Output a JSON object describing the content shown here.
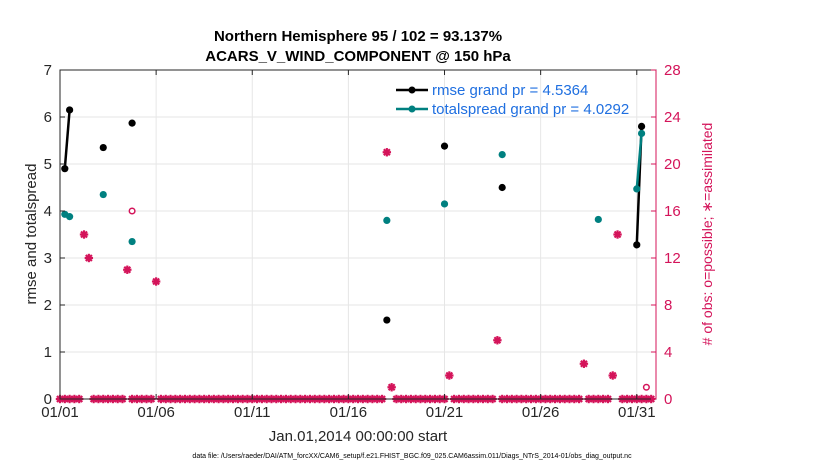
{
  "chart_data": {
    "type": "line",
    "title_line1": "Northern Hemisphere 95 / 102 = 93.137%",
    "title_line2": "ACARS_V_WIND_COMPONENT @ 150 hPa",
    "xlabel": "Jan.01,2014 00:00:00 start",
    "ylabel_left": "rmse and totalspread",
    "ylabel_right": "# of obs: o=possible; ∗=assimilated",
    "footnote": "data file: /Users/raeder/DAI/ATM_forcXX/CAM6_setup/f.e21.FHIST_BGC.f09_025.CAM6assim.011/Diags_NTrS_2014-01/obs_diag_output.nc",
    "xlim": [
      1,
      32
    ],
    "ylim_left": [
      0,
      7
    ],
    "ylim_right": [
      0,
      28
    ],
    "x_ticks": [
      1,
      6,
      11,
      16,
      21,
      26,
      31
    ],
    "x_tick_labels": [
      "01/01",
      "01/06",
      "01/11",
      "01/16",
      "01/21",
      "01/26",
      "01/31"
    ],
    "y_ticks_left": [
      0,
      1,
      2,
      3,
      4,
      5,
      6,
      7
    ],
    "y_ticks_left_labels": [
      "0",
      "1",
      "2",
      "3",
      "4",
      "5",
      "6",
      "7"
    ],
    "y_ticks_right": [
      0,
      4,
      8,
      12,
      16,
      20,
      24,
      28
    ],
    "y_ticks_right_labels": [
      "0",
      "4",
      "8",
      "12",
      "16",
      "20",
      "24",
      "28"
    ],
    "grid": true,
    "legend_position": "top-right",
    "series": [
      {
        "name": "rmse grand pr = 4.5364",
        "color": "#000000",
        "axis": "left",
        "points": [
          [
            1.25,
            4.9
          ],
          [
            1.5,
            6.15
          ],
          [
            3.25,
            5.35
          ],
          [
            4.75,
            5.87
          ],
          [
            18.0,
            1.68
          ],
          [
            21.0,
            5.38
          ],
          [
            24.0,
            4.5
          ],
          [
            31.0,
            3.28
          ],
          [
            31.25,
            5.8
          ]
        ]
      },
      {
        "name": "totalspread grand pr = 4.0292",
        "color": "#008080",
        "axis": "left",
        "points": [
          [
            1.25,
            3.93
          ],
          [
            1.5,
            3.88
          ],
          [
            3.25,
            4.35
          ],
          [
            4.75,
            3.35
          ],
          [
            18.0,
            3.8
          ],
          [
            21.0,
            4.15
          ],
          [
            24.0,
            5.2
          ],
          [
            29.0,
            3.82
          ],
          [
            31.0,
            4.47
          ],
          [
            31.25,
            5.65
          ]
        ]
      },
      {
        "name": "assimilated",
        "color": "#d4145a",
        "axis": "right",
        "values": [
          0,
          0,
          0,
          0,
          0,
          14,
          12,
          0,
          0,
          0,
          0,
          0,
          0,
          0,
          11,
          0,
          0,
          0,
          0,
          0,
          10,
          0,
          0,
          0,
          0,
          0,
          0,
          0,
          0,
          0,
          0,
          0,
          0,
          0,
          0,
          0,
          0,
          0,
          0,
          0,
          0,
          0,
          0,
          0,
          0,
          0,
          0,
          0,
          0,
          0,
          0,
          0,
          0,
          0,
          0,
          0,
          0,
          0,
          0,
          0,
          0,
          0,
          0,
          0,
          0,
          0,
          0,
          0,
          21,
          1,
          0,
          0,
          0,
          0,
          0,
          0,
          0,
          0,
          0,
          0,
          0,
          2,
          0,
          0,
          0,
          0,
          0,
          0,
          0,
          0,
          0,
          5,
          0,
          0,
          0,
          0,
          0,
          0,
          0,
          0,
          0,
          0,
          0,
          0,
          0,
          0,
          0,
          0,
          0,
          3,
          0,
          0,
          0,
          0,
          0,
          2,
          14,
          0,
          0,
          0,
          0,
          0,
          0,
          0
        ],
        "x_start": 1.0,
        "x_step": 0.25
      },
      {
        "name": "possible",
        "color": "#d4145a",
        "axis": "right",
        "points": [
          [
            4.75,
            16
          ],
          [
            31.5,
            1
          ]
        ]
      }
    ]
  }
}
